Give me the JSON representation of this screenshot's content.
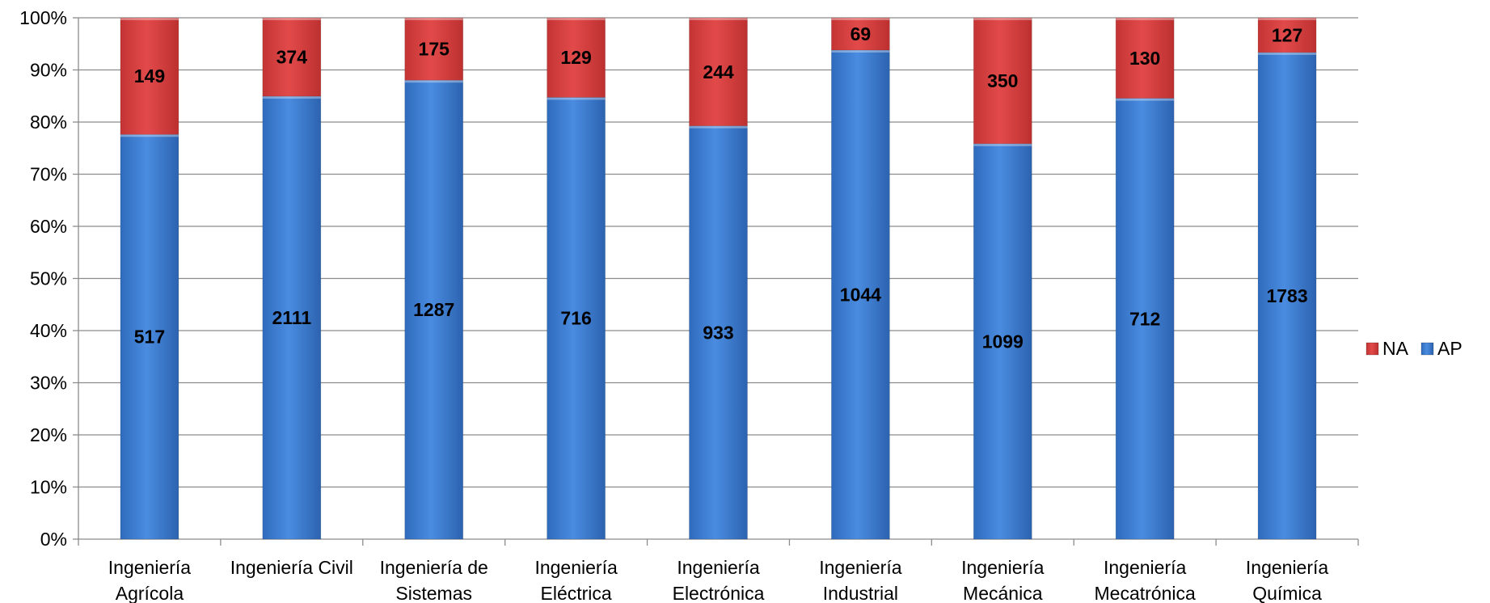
{
  "chart_data": {
    "type": "bar",
    "stacked": "percent",
    "title": "",
    "xlabel": "",
    "ylabel": "",
    "ylim": [
      0,
      100
    ],
    "y_ticks": [
      "0%",
      "10%",
      "20%",
      "30%",
      "40%",
      "50%",
      "60%",
      "70%",
      "80%",
      "90%",
      "100%"
    ],
    "grid": true,
    "legend_position": "right",
    "categories": [
      [
        "Ingeniería",
        "Agrícola"
      ],
      [
        "Ingeniería Civil"
      ],
      [
        "Ingeniería de",
        "Sistemas"
      ],
      [
        "Ingeniería",
        "Eléctrica"
      ],
      [
        "Ingeniería",
        "Electrónica"
      ],
      [
        "Ingeniería",
        "Industrial"
      ],
      [
        "Ingeniería",
        "Mecánica"
      ],
      [
        "Ingeniería",
        "Mecatrónica"
      ],
      [
        "Ingeniería",
        "Química"
      ]
    ],
    "series": [
      {
        "name": "AP",
        "color": "#3d7fd6",
        "values": [
          517,
          2111,
          1287,
          716,
          933,
          1044,
          1099,
          712,
          1783
        ]
      },
      {
        "name": "NA",
        "color": "#d94040",
        "values": [
          149,
          374,
          175,
          129,
          244,
          69,
          350,
          130,
          127
        ]
      }
    ],
    "legend_order": [
      "NA",
      "AP"
    ]
  }
}
